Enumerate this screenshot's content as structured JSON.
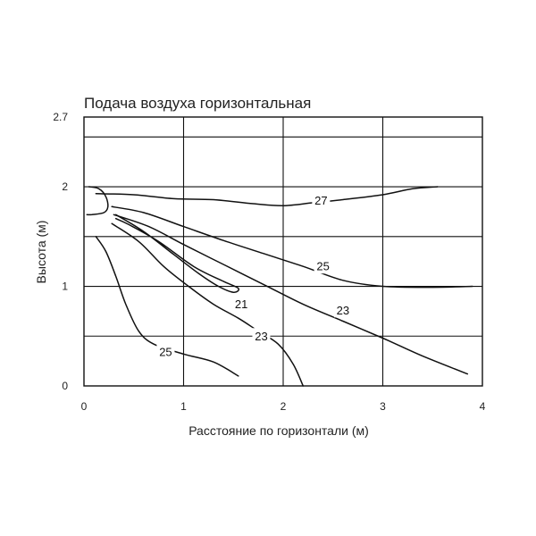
{
  "chart_data": {
    "type": "line",
    "title": "Подача воздуха горизонтальная",
    "xlabel": "Расстояние по горизонтали (м)",
    "ylabel": "Высота (м)",
    "xlim": [
      0,
      4
    ],
    "ylim": [
      0,
      2.7
    ],
    "x_ticks": [
      0,
      1,
      2,
      3,
      4
    ],
    "x_tick_labels": [
      "0",
      "1",
      "2",
      "3",
      "4"
    ],
    "y_ticks": [
      0,
      1,
      2,
      2.7
    ],
    "y_tick_labels": [
      "0",
      "1",
      "2",
      "2.7"
    ],
    "grid_x": [
      1,
      2,
      3
    ],
    "grid_y": [
      0.5,
      1,
      1.5,
      2,
      2.5
    ],
    "series": [
      {
        "name": "27",
        "label_at": [
          2.38,
          1.86
        ],
        "points": [
          [
            0.12,
            1.93
          ],
          [
            0.5,
            1.92
          ],
          [
            0.9,
            1.88
          ],
          [
            1.3,
            1.87
          ],
          [
            1.7,
            1.83
          ],
          [
            2.0,
            1.81
          ],
          [
            2.3,
            1.84
          ],
          [
            2.6,
            1.87
          ],
          [
            3.0,
            1.92
          ],
          [
            3.3,
            1.98
          ],
          [
            3.55,
            2.0
          ]
        ]
      },
      {
        "name": "25",
        "label_at": [
          2.4,
          1.2
        ],
        "points": [
          [
            0.28,
            1.8
          ],
          [
            0.6,
            1.74
          ],
          [
            1.0,
            1.6
          ],
          [
            1.4,
            1.46
          ],
          [
            1.8,
            1.33
          ],
          [
            2.2,
            1.2
          ],
          [
            2.6,
            1.06
          ],
          [
            3.0,
            1.0
          ],
          [
            3.5,
            0.99
          ],
          [
            3.9,
            1.0
          ]
        ]
      },
      {
        "name": "23",
        "label_at": [
          2.6,
          0.76
        ],
        "points": [
          [
            0.3,
            1.72
          ],
          [
            0.65,
            1.6
          ],
          [
            1.0,
            1.42
          ],
          [
            1.4,
            1.22
          ],
          [
            1.8,
            1.02
          ],
          [
            2.2,
            0.82
          ],
          [
            2.6,
            0.65
          ],
          [
            3.0,
            0.48
          ],
          [
            3.4,
            0.3
          ],
          [
            3.85,
            0.12
          ]
        ]
      },
      {
        "name": "21",
        "label_at": [
          1.58,
          0.82
        ],
        "points": [
          [
            0.32,
            1.72
          ],
          [
            0.6,
            1.55
          ],
          [
            0.9,
            1.32
          ],
          [
            1.15,
            1.13
          ],
          [
            1.35,
            1.0
          ],
          [
            1.5,
            0.94
          ],
          [
            1.55,
            0.98
          ],
          [
            1.4,
            1.05
          ],
          [
            1.1,
            1.2
          ],
          [
            0.75,
            1.45
          ],
          [
            0.45,
            1.62
          ],
          [
            0.32,
            1.68
          ]
        ]
      },
      {
        "name": "23",
        "label_at": [
          1.78,
          0.5
        ],
        "points": [
          [
            0.28,
            1.63
          ],
          [
            0.55,
            1.45
          ],
          [
            0.8,
            1.2
          ],
          [
            1.05,
            1.0
          ],
          [
            1.3,
            0.82
          ],
          [
            1.55,
            0.68
          ],
          [
            1.75,
            0.55
          ],
          [
            1.95,
            0.42
          ],
          [
            2.1,
            0.22
          ],
          [
            2.2,
            0.0
          ]
        ]
      },
      {
        "name": "25",
        "label_at": [
          0.82,
          0.34
        ],
        "points": [
          [
            0.12,
            1.5
          ],
          [
            0.22,
            1.35
          ],
          [
            0.32,
            1.1
          ],
          [
            0.42,
            0.82
          ],
          [
            0.55,
            0.55
          ],
          [
            0.7,
            0.42
          ],
          [
            1.0,
            0.32
          ],
          [
            1.3,
            0.24
          ],
          [
            1.55,
            0.1
          ]
        ]
      },
      {
        "name": "",
        "points": [
          [
            0.05,
            2.0
          ],
          [
            0.15,
            1.98
          ],
          [
            0.22,
            1.9
          ],
          [
            0.24,
            1.8
          ],
          [
            0.2,
            1.74
          ],
          [
            0.08,
            1.72
          ],
          [
            0.03,
            1.72
          ]
        ]
      }
    ]
  }
}
